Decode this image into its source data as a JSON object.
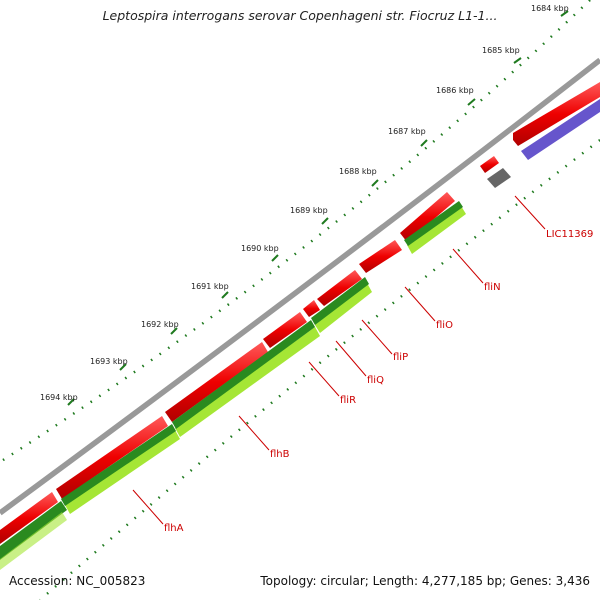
{
  "title": "Leptospira interrogans serovar Copenhageni str. Fiocruz L1-1...",
  "footer": {
    "accession": "Accession: NC_005823",
    "stats": "Topology: circular; Length: 4,277,185 bp; Genes: 3,436"
  },
  "scale_labels": [
    "1684 kbp",
    "1685 kbp",
    "1686 kbp",
    "1687 kbp",
    "1688 kbp",
    "1689 kbp",
    "1690 kbp",
    "1691 kbp",
    "1692 kbp",
    "1693 kbp",
    "1694 kbp"
  ],
  "gene_labels": [
    "LIC11369",
    "fliN",
    "fliO",
    "fliP",
    "fliQ",
    "fliR",
    "flhB",
    "flhA"
  ],
  "colors": {
    "backbone": "#888888",
    "forward_cds": "#ee0000",
    "reverse_cds_dark": "#2a8a1f",
    "reverse_cds_light": "#a5e635",
    "blue_feature": "#6655cc",
    "gray_feature": "#666666",
    "tick": "#1f7a1f",
    "label": "#cc0000"
  }
}
